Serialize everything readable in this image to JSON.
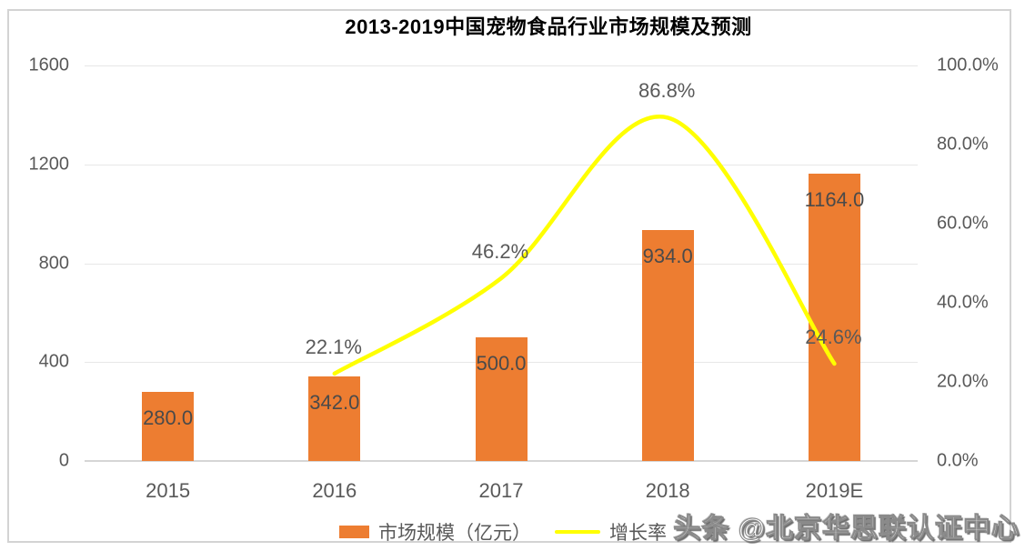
{
  "title": "2013-2019中国宠物食品行业市场规模及预测",
  "watermark": "头条 @北京华思联认证中心",
  "colors": {
    "bar": "#ED7D31",
    "line": "#FFFF00",
    "axis_text": "#595959",
    "bar_label_text": "#4a4a4a",
    "grid": "#e7e7e7",
    "baseline": "#d6d6d6",
    "title_text": "#000000"
  },
  "chart_data": {
    "type": "combo",
    "title": "2013-2019中国宠物食品行业市场规模及预测",
    "categories": [
      "2015",
      "2016",
      "2017",
      "2018",
      "2019E"
    ],
    "series": [
      {
        "name": "市场规模（亿元）",
        "type": "bar",
        "axis": "left",
        "color": "#ED7D31",
        "values": [
          280.0,
          342.0,
          500.0,
          934.0,
          1164.0
        ],
        "labels": [
          "280.0",
          "342.0",
          "500.0",
          "934.0",
          "1164.0"
        ]
      },
      {
        "name": "增长率",
        "type": "line",
        "axis": "right",
        "color": "#FFFF00",
        "values": [
          null,
          22.1,
          46.2,
          86.8,
          24.6
        ],
        "labels": [
          "",
          "22.1%",
          "46.2%",
          "86.8%",
          "24.6%"
        ]
      }
    ],
    "left_axis": {
      "min": 0,
      "max": 1600,
      "ticks": [
        "0",
        "400",
        "800",
        "1200",
        "1600"
      ]
    },
    "right_axis": {
      "min": 0,
      "max": 100,
      "ticks": [
        "0.0%",
        "20.0%",
        "40.0%",
        "60.0%",
        "80.0%",
        "100.0%"
      ]
    },
    "grid": true,
    "legend_position": "bottom"
  }
}
